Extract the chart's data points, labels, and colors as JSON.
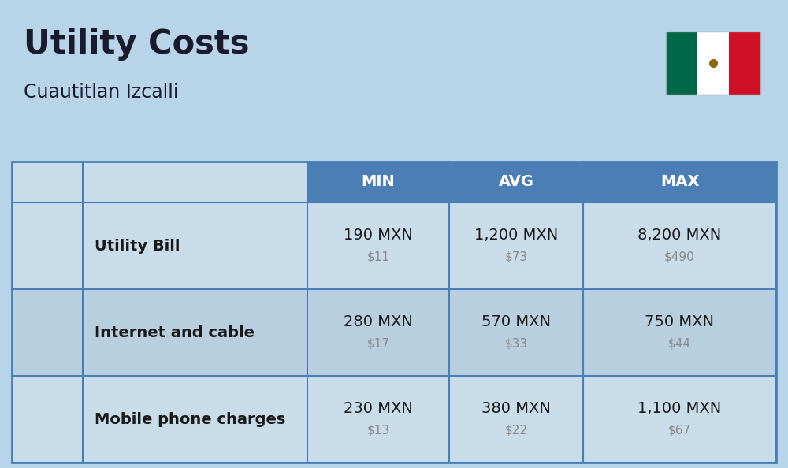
{
  "title": "Utility Costs",
  "subtitle": "Cuautitlan Izcalli",
  "bg_color": "#b8d4e8",
  "header_bg": "#4a7eb5",
  "header_text_color": "#ffffff",
  "row_bg_even": "#c8dcea",
  "row_bg_odd": "#b8cfe0",
  "table_border_color": "#4a7eb5",
  "columns": [
    "MIN",
    "AVG",
    "MAX"
  ],
  "rows": [
    {
      "label": "Utility Bill",
      "min_mxn": "190 MXN",
      "min_usd": "$11",
      "avg_mxn": "1,200 MXN",
      "avg_usd": "$73",
      "max_mxn": "8,200 MXN",
      "max_usd": "$490"
    },
    {
      "label": "Internet and cable",
      "min_mxn": "280 MXN",
      "min_usd": "$17",
      "avg_mxn": "570 MXN",
      "avg_usd": "$33",
      "max_mxn": "750 MXN",
      "max_usd": "$44"
    },
    {
      "label": "Mobile phone charges",
      "min_mxn": "230 MXN",
      "min_usd": "$13",
      "avg_mxn": "380 MXN",
      "avg_usd": "$22",
      "max_mxn": "1,100 MXN",
      "max_usd": "$67"
    }
  ],
  "title_fontsize": 30,
  "subtitle_fontsize": 17,
  "label_fontsize": 14,
  "value_fontsize": 14,
  "usd_fontsize": 11,
  "header_fontsize": 14,
  "flag_green": "#006847",
  "flag_white": "#ffffff",
  "flag_red": "#ce1126"
}
